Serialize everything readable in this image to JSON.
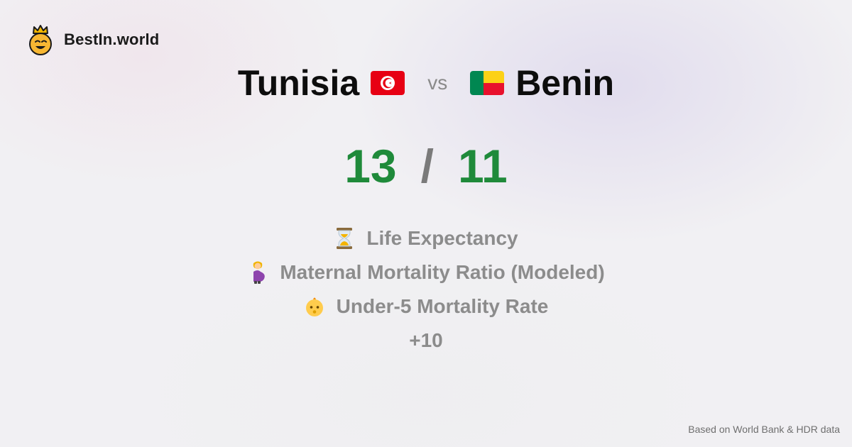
{
  "brand": {
    "name": "BestIn.world",
    "logo_icon": "crowned-smiley-icon"
  },
  "comparison": {
    "left_country": "Tunisia",
    "left_flag": "tunisia-flag-icon",
    "vs_label": "vs",
    "right_country": "Benin",
    "right_flag": "benin-flag-icon"
  },
  "score": {
    "left": "13",
    "separator": "/",
    "right": "11",
    "color": "#1f8a3a"
  },
  "metrics": [
    {
      "icon": "hourglass-icon",
      "label": "Life Expectancy"
    },
    {
      "icon": "pregnant-woman-icon",
      "label": "Maternal Mortality Ratio (Modeled)"
    },
    {
      "icon": "baby-icon",
      "label": "Under-5 Mortality Rate"
    }
  ],
  "more_label": "+10",
  "footer": {
    "source": "Based on World Bank & HDR data"
  }
}
